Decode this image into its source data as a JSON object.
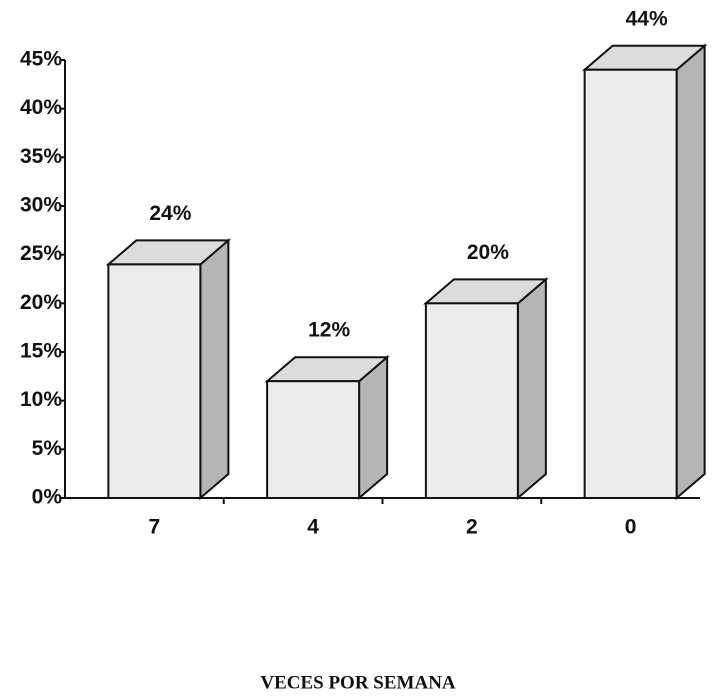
{
  "chart_data": {
    "type": "bar3d",
    "categories": [
      "7",
      "4",
      "2",
      "0"
    ],
    "values": [
      24,
      12,
      20,
      44
    ],
    "value_labels": [
      "24%",
      "12%",
      "20%",
      "44%"
    ],
    "x_label": "VECES POR SEMANA",
    "ylim": [
      0,
      45
    ],
    "yticks": [
      {
        "value": 0,
        "label": "0%"
      },
      {
        "value": 5,
        "label": "5%"
      },
      {
        "value": 10,
        "label": "10%"
      },
      {
        "value": 15,
        "label": "15%"
      },
      {
        "value": 20,
        "label": "20%"
      },
      {
        "value": 25,
        "label": "25%"
      },
      {
        "value": 30,
        "label": "30%"
      },
      {
        "value": 35,
        "label": "35%"
      },
      {
        "value": 40,
        "label": "40%"
      },
      {
        "value": 45,
        "label": "45%"
      }
    ],
    "color": "#ececec"
  }
}
